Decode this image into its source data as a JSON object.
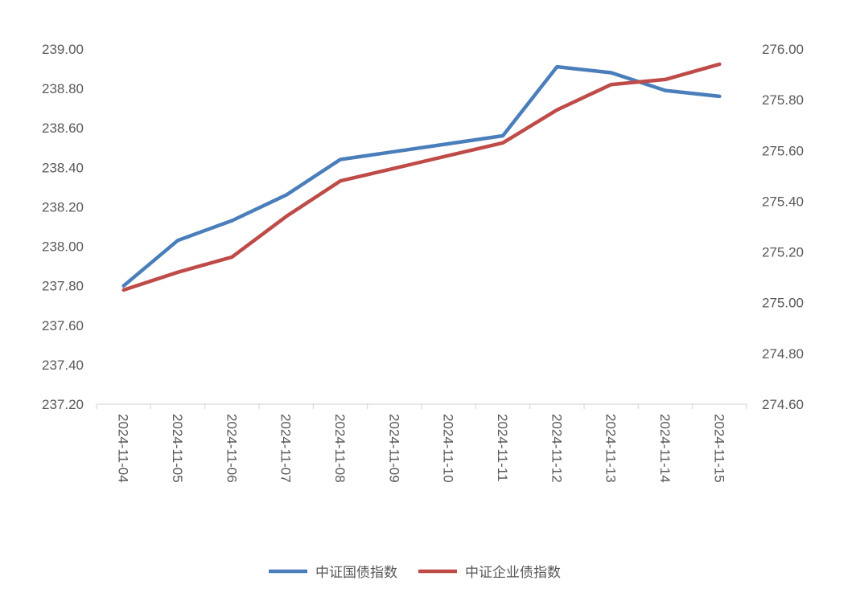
{
  "chart_data": {
    "type": "line",
    "title": "",
    "xlabel": "",
    "ylabel": "",
    "x": [
      "2024-11-04",
      "2024-11-05",
      "2024-11-06",
      "2024-11-07",
      "2024-11-08",
      "2024-11-09",
      "2024-11-10",
      "2024-11-11",
      "2024-11-12",
      "2024-11-13",
      "2024-11-14",
      "2024-11-15"
    ],
    "y_left": {
      "min": 237.2,
      "max": 239.0,
      "step": 0.2,
      "ticks": [
        "237.20",
        "237.40",
        "237.60",
        "237.80",
        "238.00",
        "238.20",
        "238.40",
        "238.60",
        "238.80",
        "239.00"
      ]
    },
    "y_right": {
      "min": 274.6,
      "max": 276.0,
      "step": 0.2,
      "ticks": [
        "274.60",
        "274.80",
        "275.00",
        "275.20",
        "275.40",
        "275.60",
        "275.80",
        "276.00"
      ]
    },
    "series": [
      {
        "name": "中证国债指数",
        "axis": "left",
        "color": "#4a7ebb",
        "values": [
          237.8,
          238.03,
          238.13,
          238.26,
          238.44,
          238.48,
          238.52,
          238.56,
          238.91,
          238.88,
          238.79,
          238.76
        ]
      },
      {
        "name": "中证企业债指数",
        "axis": "right",
        "color": "#be4b48",
        "values": [
          275.05,
          275.12,
          275.18,
          275.34,
          275.48,
          275.53,
          275.58,
          275.63,
          275.76,
          275.86,
          275.88,
          275.94
        ]
      }
    ],
    "grid": false,
    "legend": "bottom"
  }
}
